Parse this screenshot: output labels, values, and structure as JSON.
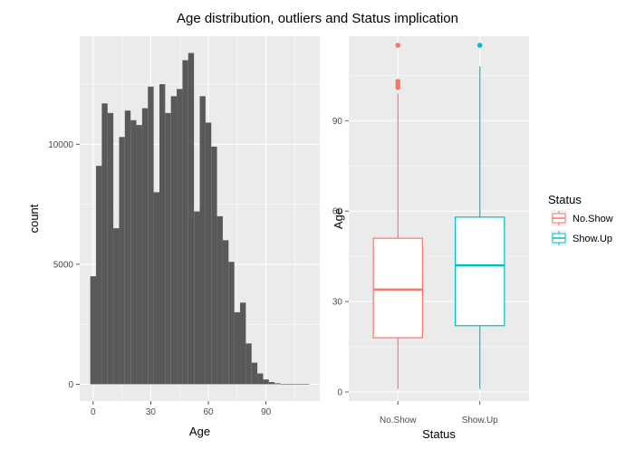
{
  "title": "Age distribution, outliers and Status implication",
  "colors": {
    "panel_bg": "#EBEBEB",
    "grid": "#FFFFFF",
    "bar": "#595959",
    "no_show": "#F8766D",
    "show_up": "#00BFC4"
  },
  "chart_data": [
    {
      "type": "bar",
      "subtype": "histogram",
      "xlabel": "Age",
      "ylabel": "count",
      "xlim": [
        -7,
        118
      ],
      "ylim": [
        -700,
        14500
      ],
      "xticks": [
        0,
        30,
        60,
        90
      ],
      "xtick_labels": [
        "0",
        "30",
        "60",
        "90"
      ],
      "yticks": [
        0,
        5000,
        10000
      ],
      "ytick_labels": [
        "0",
        "5000",
        "10000"
      ],
      "bin_width": 3,
      "bins": [
        {
          "x0": -1.5,
          "value": 4500
        },
        {
          "x0": 1.5,
          "value": 9100
        },
        {
          "x0": 4.5,
          "value": 11700
        },
        {
          "x0": 7.5,
          "value": 11300
        },
        {
          "x0": 10.5,
          "value": 6500
        },
        {
          "x0": 13.5,
          "value": 10300
        },
        {
          "x0": 16.5,
          "value": 11400
        },
        {
          "x0": 19.5,
          "value": 11000
        },
        {
          "x0": 22.5,
          "value": 10800
        },
        {
          "x0": 25.5,
          "value": 11500
        },
        {
          "x0": 28.5,
          "value": 12400
        },
        {
          "x0": 31.5,
          "value": 8000
        },
        {
          "x0": 34.5,
          "value": 12500
        },
        {
          "x0": 37.5,
          "value": 11300
        },
        {
          "x0": 40.5,
          "value": 12000
        },
        {
          "x0": 43.5,
          "value": 12300
        },
        {
          "x0": 46.5,
          "value": 13500
        },
        {
          "x0": 49.5,
          "value": 13800
        },
        {
          "x0": 52.5,
          "value": 7200
        },
        {
          "x0": 55.5,
          "value": 12000
        },
        {
          "x0": 58.5,
          "value": 10900
        },
        {
          "x0": 61.5,
          "value": 9900
        },
        {
          "x0": 64.5,
          "value": 7000
        },
        {
          "x0": 67.5,
          "value": 6000
        },
        {
          "x0": 70.5,
          "value": 5100
        },
        {
          "x0": 73.5,
          "value": 3000
        },
        {
          "x0": 76.5,
          "value": 3400
        },
        {
          "x0": 79.5,
          "value": 1700
        },
        {
          "x0": 82.5,
          "value": 900
        },
        {
          "x0": 85.5,
          "value": 450
        },
        {
          "x0": 88.5,
          "value": 200
        },
        {
          "x0": 91.5,
          "value": 90
        },
        {
          "x0": 94.5,
          "value": 40
        },
        {
          "x0": 97.5,
          "value": 15
        },
        {
          "x0": 100.5,
          "value": 8
        },
        {
          "x0": 103.5,
          "value": 5
        },
        {
          "x0": 106.5,
          "value": 3
        },
        {
          "x0": 109.5,
          "value": 2
        }
      ]
    },
    {
      "type": "boxplot",
      "xlabel": "Status",
      "ylabel": "Age",
      "categories": [
        "No.Show",
        "Show.Up"
      ],
      "ylim": [
        -3,
        118
      ],
      "yticks": [
        0,
        30,
        60,
        90
      ],
      "ytick_labels": [
        "0",
        "30",
        "60",
        "90"
      ],
      "legend": {
        "title": "Status",
        "position": "right",
        "entries": [
          "No.Show",
          "Show.Up"
        ]
      },
      "boxes": [
        {
          "name": "No.Show",
          "color": "#F8766D",
          "min": 1,
          "q1": 18,
          "median": 34,
          "q3": 51,
          "max": 99,
          "outliers": [
            101,
            102,
            103,
            115
          ]
        },
        {
          "name": "Show.Up",
          "color": "#00BFC4",
          "min": 1,
          "q1": 22,
          "median": 42,
          "q3": 58,
          "max": 108,
          "outliers": [
            115
          ]
        }
      ]
    }
  ]
}
